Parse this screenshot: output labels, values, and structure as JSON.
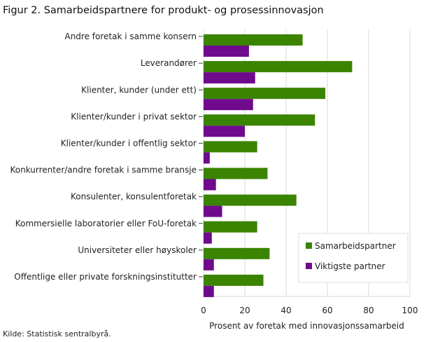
{
  "chart_data": {
    "type": "bar",
    "orientation": "horizontal",
    "title": "Figur 2. Samarbeidspartnere for produkt- og prosessinnovasjon",
    "xlabel": "Prosent av foretak med innovasjonssamarbeid",
    "ylabel": "",
    "xlim": [
      0,
      100
    ],
    "xticks": [
      0,
      20,
      40,
      60,
      80,
      100
    ],
    "grid": true,
    "legend_position": "bottom-right",
    "categories": [
      "Andre foretak i samme konsern",
      "Leverandører",
      "Klienter, kunder (under ett)",
      "Klienter/kunder i privat sektor",
      "Klienter/kunder i offentlig sektor",
      "Konkurrenter/andre foretak i samme bransje",
      "Konsulenter, konsulentforetak",
      "Kommersielle laboratorier eller FoU-foretak",
      "Universiteter eller høyskoler",
      "Offentlige eller private forskningsinstitutter"
    ],
    "series": [
      {
        "name": "Samarbeidspartner",
        "color": "#3a8400",
        "values": [
          48,
          72,
          59,
          54,
          26,
          31,
          45,
          26,
          32,
          29
        ]
      },
      {
        "name": "Viktigste partner",
        "color": "#6f0a8c",
        "values": [
          22,
          25,
          24,
          20,
          3,
          6,
          9,
          4,
          5,
          5
        ]
      }
    ]
  },
  "source": "Kilde: Statistisk sentralbyrå."
}
